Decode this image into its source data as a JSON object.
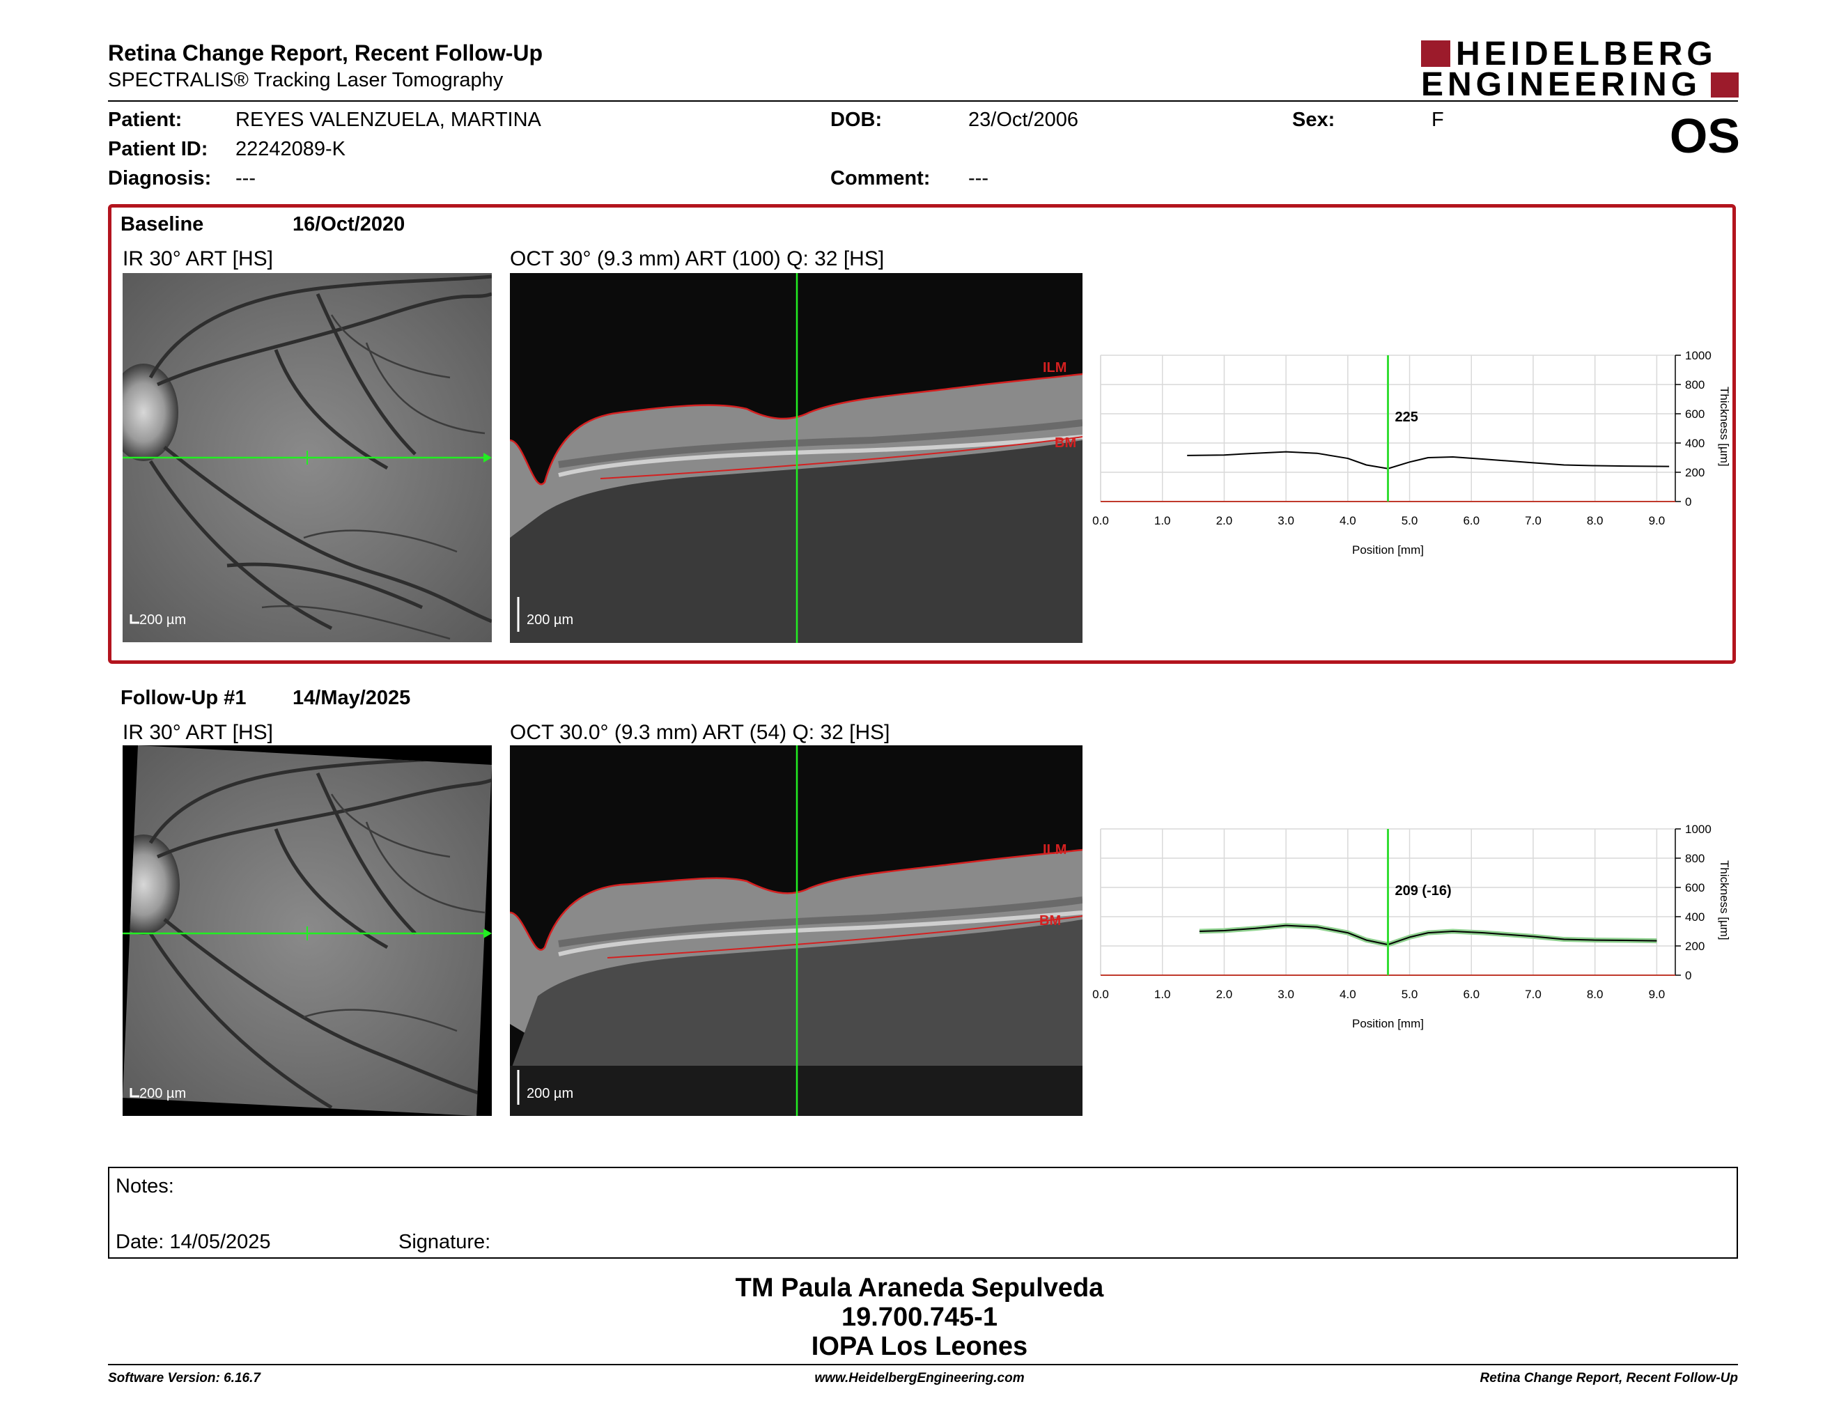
{
  "header": {
    "title": "Retina Change Report, Recent Follow-Up",
    "subtitle": "SPECTRALIS® Tracking Laser Tomography",
    "logo_line1": "HEIDELBERG",
    "logo_line2": "ENGINEERING",
    "eye": "OS"
  },
  "patient": {
    "patient_label": "Patient:",
    "patient_value": "REYES VALENZUELA, MARTINA",
    "id_label": "Patient ID:",
    "id_value": "22242089-K",
    "diagnosis_label": "Diagnosis:",
    "diagnosis_value": "---",
    "dob_label": "DOB:",
    "dob_value": "23/Oct/2006",
    "comment_label": "Comment:",
    "comment_value": "---",
    "sex_label": "Sex:",
    "sex_value": "F"
  },
  "baseline": {
    "label": "Baseline",
    "date": "16/Oct/2020",
    "ir_caption": "IR 30° ART [HS]",
    "oct_caption": "OCT 30° (9.3 mm) ART (100) Q: 32 [HS]",
    "scale_label": "200 µm",
    "ilm_label": "ILM",
    "bm_label": "BM"
  },
  "followup": {
    "label": "Follow-Up #1",
    "date": "14/May/2025",
    "ir_caption": "IR 30° ART [HS]",
    "oct_caption": "OCT 30.0° (9.3 mm) ART (54) Q: 32 [HS]",
    "scale_label": "200 µm",
    "ilm_label": "ILM",
    "bm_label": "BM"
  },
  "chart_data": [
    {
      "type": "line",
      "xlabel": "Position [mm]",
      "ylabel": "Thickness [µm]",
      "xlim": [
        0,
        9.3
      ],
      "ylim": [
        0,
        1000
      ],
      "x_ticks": [
        "0.0",
        "1.0",
        "2.0",
        "3.0",
        "4.0",
        "5.0",
        "6.0",
        "7.0",
        "8.0",
        "9.0"
      ],
      "y_ticks": [
        "0",
        "200",
        "400",
        "600",
        "800",
        "1000"
      ],
      "grid": true,
      "cursor_x": 4.65,
      "cursor_label": "225",
      "series": [
        {
          "x": [
            1.4,
            2.0,
            2.5,
            3.0,
            3.5,
            4.0,
            4.3,
            4.65,
            5.0,
            5.3,
            5.7,
            6.2,
            7.0,
            7.5,
            8.0,
            8.5,
            9.2
          ],
          "values": [
            315,
            318,
            330,
            340,
            330,
            295,
            250,
            225,
            270,
            300,
            305,
            290,
            265,
            250,
            245,
            242,
            240
          ]
        }
      ],
      "colors": {
        "series": "#000000",
        "cursor": "#33dd33",
        "baseline": "#c0392b"
      }
    },
    {
      "type": "line",
      "xlabel": "Position [mm]",
      "ylabel": "Thickness [µm]",
      "xlim": [
        0,
        9.3
      ],
      "ylim": [
        0,
        1000
      ],
      "x_ticks": [
        "0.0",
        "1.0",
        "2.0",
        "3.0",
        "4.0",
        "5.0",
        "6.0",
        "7.0",
        "8.0",
        "9.0"
      ],
      "y_ticks": [
        "0",
        "200",
        "400",
        "600",
        "800",
        "1000"
      ],
      "grid": true,
      "cursor_x": 4.65,
      "cursor_label": "209 (-16)",
      "series": [
        {
          "x": [
            1.6,
            2.0,
            2.5,
            3.0,
            3.5,
            4.0,
            4.3,
            4.65,
            5.0,
            5.3,
            5.7,
            6.2,
            7.0,
            7.5,
            8.0,
            8.5,
            9.0
          ],
          "values": [
            300,
            305,
            320,
            340,
            330,
            290,
            240,
            209,
            260,
            290,
            300,
            290,
            265,
            245,
            240,
            238,
            235
          ]
        }
      ],
      "colors": {
        "series": "#000000",
        "cursor": "#33dd33",
        "baseline": "#c0392b",
        "fill": "#8fd18f"
      }
    }
  ],
  "notes": {
    "notes_label": "Notes:",
    "date_label": "Date: 14/05/2025",
    "signature_label": "Signature:"
  },
  "signature_block": {
    "line1": "TM Paula Araneda Sepulveda",
    "line2": "19.700.745-1",
    "line3": "IOPA Los Leones"
  },
  "footer": {
    "software": "Software Version: 6.16.7",
    "website": "www.HeidelbergEngineering.com",
    "report": "Retina Change Report, Recent Follow-Up"
  }
}
